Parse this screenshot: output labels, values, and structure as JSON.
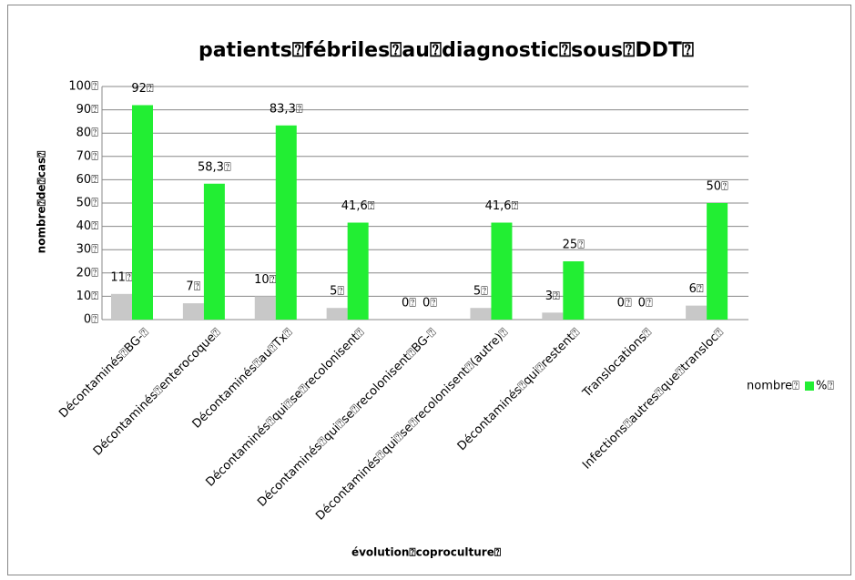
{
  "chart_data": {
    "type": "bar",
    "title": "patients⍰fébriles⍰au⍰diagnostic⍰sous⍰DDT⍰",
    "x_label": "évolution⍰coproculture⍰",
    "y_label": "nombre⍰de⍰cas⍰",
    "categories": [
      "Décontaminés⍰BG-⍰",
      "Décontaminés⍰enterocoque⍰",
      "Décontaminés⍰au⍰Tx⍰",
      "Décontaminés⍰qui⍰se⍰recolonisent⍰",
      "Décontaminés⍰qui⍰se⍰recolonisent⍰BG-⍰",
      "Décontaminés⍰qui⍰se⍰recolonisent⍰(autre)⍰",
      "Décontaminés⍰qui⍰restent⍰",
      "Translocations⍰",
      "Infections⍰autres⍰que⍰transloc⍰"
    ],
    "series": [
      {
        "name": "nombre⍰",
        "color": "#c8c8c8",
        "values": [
          11,
          7,
          10,
          5,
          0,
          5,
          3,
          0,
          6
        ],
        "value_labels": [
          "11⍰",
          "7⍰",
          "10⍰",
          "5⍰",
          "0⍰",
          "5⍰",
          "3⍰",
          "0⍰",
          "6⍰"
        ]
      },
      {
        "name": "%⍰",
        "color": "#22ee33",
        "values": [
          92,
          58.3,
          83.3,
          41.6,
          0,
          41.6,
          25,
          0,
          50
        ],
        "value_labels": [
          "92⍰",
          "58,3⍰",
          "83,3⍰",
          "41,6⍰",
          "0⍰",
          "41,6⍰",
          "25⍰",
          "0⍰",
          "50⍰"
        ]
      }
    ],
    "ylim": [
      0,
      100
    ],
    "yticks": [
      {
        "value": 0,
        "label": "0⍰"
      },
      {
        "value": 10,
        "label": "10⍰"
      },
      {
        "value": 20,
        "label": "20⍰"
      },
      {
        "value": 30,
        "label": "30⍰"
      },
      {
        "value": 40,
        "label": "40⍰"
      },
      {
        "value": 50,
        "label": "50⍰"
      },
      {
        "value": 60,
        "label": "60⍰"
      },
      {
        "value": 70,
        "label": "70⍰"
      },
      {
        "value": 80,
        "label": "80⍰"
      },
      {
        "value": 90,
        "label": "90⍰"
      },
      {
        "value": 100,
        "label": "100⍰"
      }
    ],
    "grid": true,
    "legend": "right"
  }
}
